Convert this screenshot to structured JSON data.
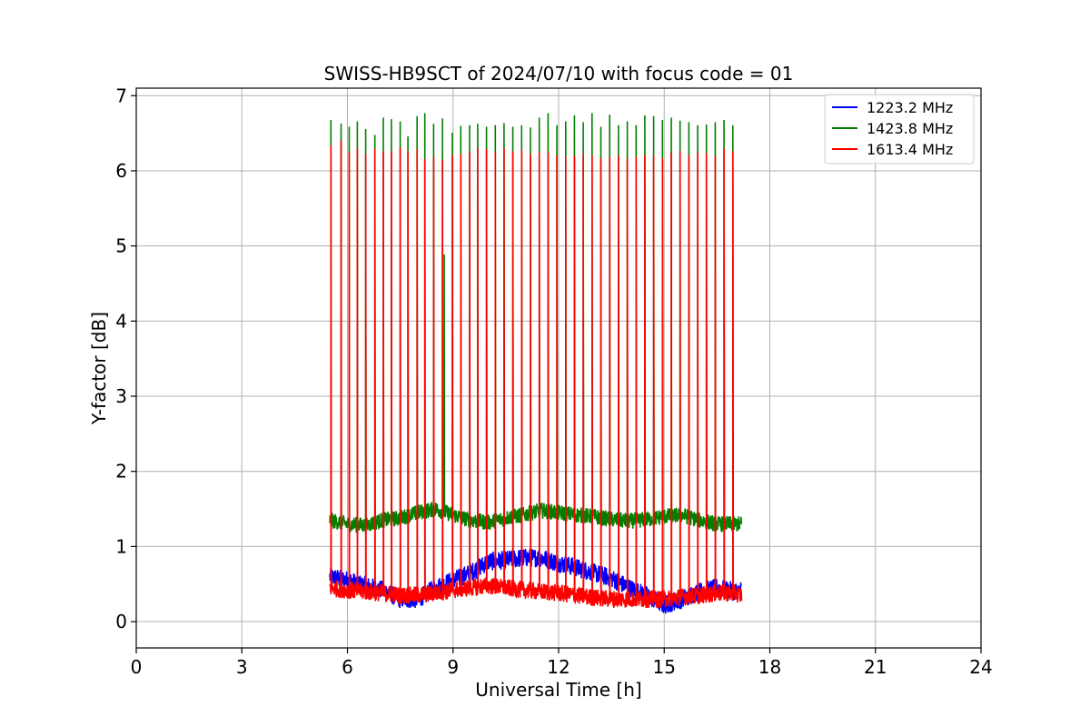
{
  "chart_data": {
    "type": "line",
    "title": "SWISS-HB9SCT of 2024/07/10 with focus code = 01",
    "xlabel": "Universal Time [h]",
    "ylabel": "Y-factor [dB]",
    "xlim": [
      0,
      24
    ],
    "ylim": [
      -0.35,
      7.1
    ],
    "xticks": [
      0,
      3,
      6,
      9,
      12,
      15,
      18,
      21,
      24
    ],
    "yticks": [
      0,
      1,
      2,
      3,
      4,
      5,
      6,
      7
    ],
    "grid": true,
    "legend_position": "top-right",
    "series": [
      {
        "name": "1223.2 MHz",
        "color": "#0000ff",
        "baseline": [
          [
            5.5,
            0.6
          ],
          [
            6.0,
            0.55
          ],
          [
            6.5,
            0.48
          ],
          [
            7.0,
            0.42
          ],
          [
            7.5,
            0.3
          ],
          [
            8.0,
            0.3
          ],
          [
            8.5,
            0.45
          ],
          [
            9.0,
            0.55
          ],
          [
            9.5,
            0.65
          ],
          [
            10.0,
            0.8
          ],
          [
            10.5,
            0.82
          ],
          [
            11.0,
            0.85
          ],
          [
            11.5,
            0.85
          ],
          [
            12.0,
            0.78
          ],
          [
            12.5,
            0.72
          ],
          [
            13.0,
            0.65
          ],
          [
            13.5,
            0.58
          ],
          [
            14.0,
            0.45
          ],
          [
            14.5,
            0.35
          ],
          [
            15.0,
            0.22
          ],
          [
            15.5,
            0.3
          ],
          [
            16.0,
            0.4
          ],
          [
            16.5,
            0.45
          ],
          [
            17.0,
            0.4
          ],
          [
            17.2,
            0.42
          ]
        ],
        "noise": 0.12
      },
      {
        "name": "1423.8 MHz",
        "color": "#008000",
        "baseline": [
          [
            5.5,
            1.35
          ],
          [
            6.0,
            1.3
          ],
          [
            6.5,
            1.28
          ],
          [
            7.0,
            1.35
          ],
          [
            7.5,
            1.38
          ],
          [
            8.0,
            1.45
          ],
          [
            8.5,
            1.5
          ],
          [
            9.0,
            1.42
          ],
          [
            9.5,
            1.35
          ],
          [
            10.0,
            1.32
          ],
          [
            10.5,
            1.38
          ],
          [
            11.0,
            1.42
          ],
          [
            11.5,
            1.48
          ],
          [
            12.0,
            1.45
          ],
          [
            12.5,
            1.42
          ],
          [
            13.0,
            1.4
          ],
          [
            13.5,
            1.36
          ],
          [
            14.0,
            1.34
          ],
          [
            14.5,
            1.36
          ],
          [
            15.0,
            1.4
          ],
          [
            15.5,
            1.42
          ],
          [
            16.0,
            1.35
          ],
          [
            16.5,
            1.3
          ],
          [
            17.0,
            1.3
          ],
          [
            17.2,
            1.3
          ]
        ],
        "noise": 0.1,
        "spikes": [
          [
            5.53,
            6.67
          ],
          [
            5.82,
            6.62
          ],
          [
            6.05,
            6.58
          ],
          [
            6.28,
            6.65
          ],
          [
            6.52,
            6.55
          ],
          [
            6.78,
            6.47
          ],
          [
            7.02,
            6.7
          ],
          [
            7.25,
            6.68
          ],
          [
            7.5,
            6.65
          ],
          [
            7.72,
            6.45
          ],
          [
            7.98,
            6.72
          ],
          [
            8.2,
            6.76
          ],
          [
            8.45,
            6.62
          ],
          [
            8.7,
            6.69
          ],
          [
            8.75,
            4.88
          ],
          [
            8.98,
            6.5
          ],
          [
            9.22,
            6.59
          ],
          [
            9.47,
            6.6
          ],
          [
            9.7,
            6.62
          ],
          [
            9.95,
            6.58
          ],
          [
            10.2,
            6.6
          ],
          [
            10.45,
            6.63
          ],
          [
            10.7,
            6.58
          ],
          [
            10.95,
            6.6
          ],
          [
            11.2,
            6.57
          ],
          [
            11.45,
            6.7
          ],
          [
            11.7,
            6.76
          ],
          [
            11.95,
            6.6
          ],
          [
            12.2,
            6.65
          ],
          [
            12.45,
            6.73
          ],
          [
            12.7,
            6.64
          ],
          [
            12.95,
            6.76
          ],
          [
            13.2,
            6.58
          ],
          [
            13.45,
            6.74
          ],
          [
            13.7,
            6.6
          ],
          [
            13.95,
            6.65
          ],
          [
            14.2,
            6.6
          ],
          [
            14.45,
            6.73
          ],
          [
            14.7,
            6.72
          ],
          [
            14.95,
            6.67
          ],
          [
            15.2,
            6.7
          ],
          [
            15.45,
            6.66
          ],
          [
            15.7,
            6.64
          ],
          [
            15.95,
            6.6
          ],
          [
            16.2,
            6.61
          ],
          [
            16.45,
            6.64
          ],
          [
            16.7,
            6.67
          ],
          [
            16.95,
            6.6
          ]
        ]
      },
      {
        "name": "1613.4 MHz",
        "color": "#ff0000",
        "baseline": [
          [
            5.5,
            0.45
          ],
          [
            6.0,
            0.42
          ],
          [
            6.5,
            0.4
          ],
          [
            7.0,
            0.38
          ],
          [
            7.5,
            0.35
          ],
          [
            8.0,
            0.35
          ],
          [
            8.5,
            0.38
          ],
          [
            9.0,
            0.42
          ],
          [
            9.5,
            0.45
          ],
          [
            10.0,
            0.48
          ],
          [
            10.5,
            0.45
          ],
          [
            11.0,
            0.42
          ],
          [
            11.5,
            0.4
          ],
          [
            12.0,
            0.38
          ],
          [
            12.5,
            0.35
          ],
          [
            13.0,
            0.32
          ],
          [
            13.5,
            0.3
          ],
          [
            14.0,
            0.3
          ],
          [
            14.5,
            0.3
          ],
          [
            15.0,
            0.3
          ],
          [
            15.5,
            0.33
          ],
          [
            16.0,
            0.35
          ],
          [
            16.5,
            0.38
          ],
          [
            17.0,
            0.38
          ],
          [
            17.2,
            0.35
          ]
        ],
        "noise": 0.11,
        "spikes": [
          [
            5.53,
            6.33
          ],
          [
            5.82,
            6.4
          ],
          [
            6.05,
            6.25
          ],
          [
            6.28,
            6.3
          ],
          [
            6.52,
            6.22
          ],
          [
            6.78,
            6.28
          ],
          [
            7.02,
            6.25
          ],
          [
            7.25,
            6.25
          ],
          [
            7.5,
            6.3
          ],
          [
            7.72,
            6.25
          ],
          [
            7.98,
            6.28
          ],
          [
            8.2,
            6.15
          ],
          [
            8.45,
            6.18
          ],
          [
            8.7,
            6.14
          ],
          [
            8.98,
            6.2
          ],
          [
            9.22,
            6.22
          ],
          [
            9.47,
            6.24
          ],
          [
            9.7,
            6.3
          ],
          [
            9.95,
            6.28
          ],
          [
            10.2,
            6.25
          ],
          [
            10.45,
            6.3
          ],
          [
            10.7,
            6.25
          ],
          [
            10.95,
            6.27
          ],
          [
            11.2,
            6.22
          ],
          [
            11.45,
            6.25
          ],
          [
            11.7,
            6.25
          ],
          [
            11.95,
            6.2
          ],
          [
            12.2,
            6.18
          ],
          [
            12.45,
            6.19
          ],
          [
            12.7,
            6.22
          ],
          [
            12.95,
            6.2
          ],
          [
            13.2,
            6.16
          ],
          [
            13.45,
            6.18
          ],
          [
            13.7,
            6.2
          ],
          [
            13.95,
            6.16
          ],
          [
            14.2,
            6.18
          ],
          [
            14.45,
            6.2
          ],
          [
            14.7,
            6.2
          ],
          [
            14.95,
            6.16
          ],
          [
            15.2,
            6.24
          ],
          [
            15.45,
            6.26
          ],
          [
            15.7,
            6.2
          ],
          [
            15.95,
            6.24
          ],
          [
            16.2,
            6.23
          ],
          [
            16.45,
            6.2
          ],
          [
            16.7,
            6.29
          ],
          [
            16.95,
            6.25
          ]
        ]
      }
    ]
  }
}
